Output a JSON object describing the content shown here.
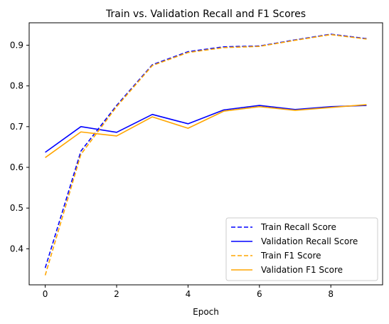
{
  "chart_data": {
    "type": "line",
    "title": "Train vs. Validation Recall and F1 Scores",
    "xlabel": "Epoch",
    "ylabel": "",
    "xlim": [
      -0.45,
      9.45
    ],
    "ylim": [
      0.3115,
      0.955
    ],
    "x_ticks": [
      0,
      2,
      4,
      6,
      8
    ],
    "x_tick_labels": [
      "0",
      "2",
      "4",
      "6",
      "8"
    ],
    "y_ticks": [
      0.4,
      0.5,
      0.6,
      0.7,
      0.8,
      0.9
    ],
    "y_tick_labels": [
      "0.4",
      "0.5",
      "0.6",
      "0.7",
      "0.8",
      "0.9"
    ],
    "grid": false,
    "legend_position": "lower-right",
    "x": [
      0,
      1,
      2,
      3,
      4,
      5,
      6,
      7,
      8,
      9
    ],
    "series": [
      {
        "name": "Train Recall Score",
        "color": "#0000ff",
        "dash": "dashed",
        "values": [
          0.353,
          0.64,
          0.752,
          0.852,
          0.884,
          0.896,
          0.898,
          0.913,
          0.927,
          0.916
        ]
      },
      {
        "name": "Validation Recall Score",
        "color": "#0000ff",
        "dash": "solid",
        "values": [
          0.637,
          0.7,
          0.686,
          0.73,
          0.707,
          0.741,
          0.752,
          0.742,
          0.749,
          0.752
        ]
      },
      {
        "name": "Train F1 Score",
        "color": "#ffa500",
        "dash": "dashed",
        "values": [
          0.335,
          0.632,
          0.749,
          0.85,
          0.882,
          0.894,
          0.897,
          0.912,
          0.926,
          0.915
        ]
      },
      {
        "name": "Validation F1 Score",
        "color": "#ffa500",
        "dash": "solid",
        "values": [
          0.624,
          0.687,
          0.677,
          0.724,
          0.696,
          0.738,
          0.749,
          0.74,
          0.747,
          0.754
        ]
      }
    ]
  }
}
